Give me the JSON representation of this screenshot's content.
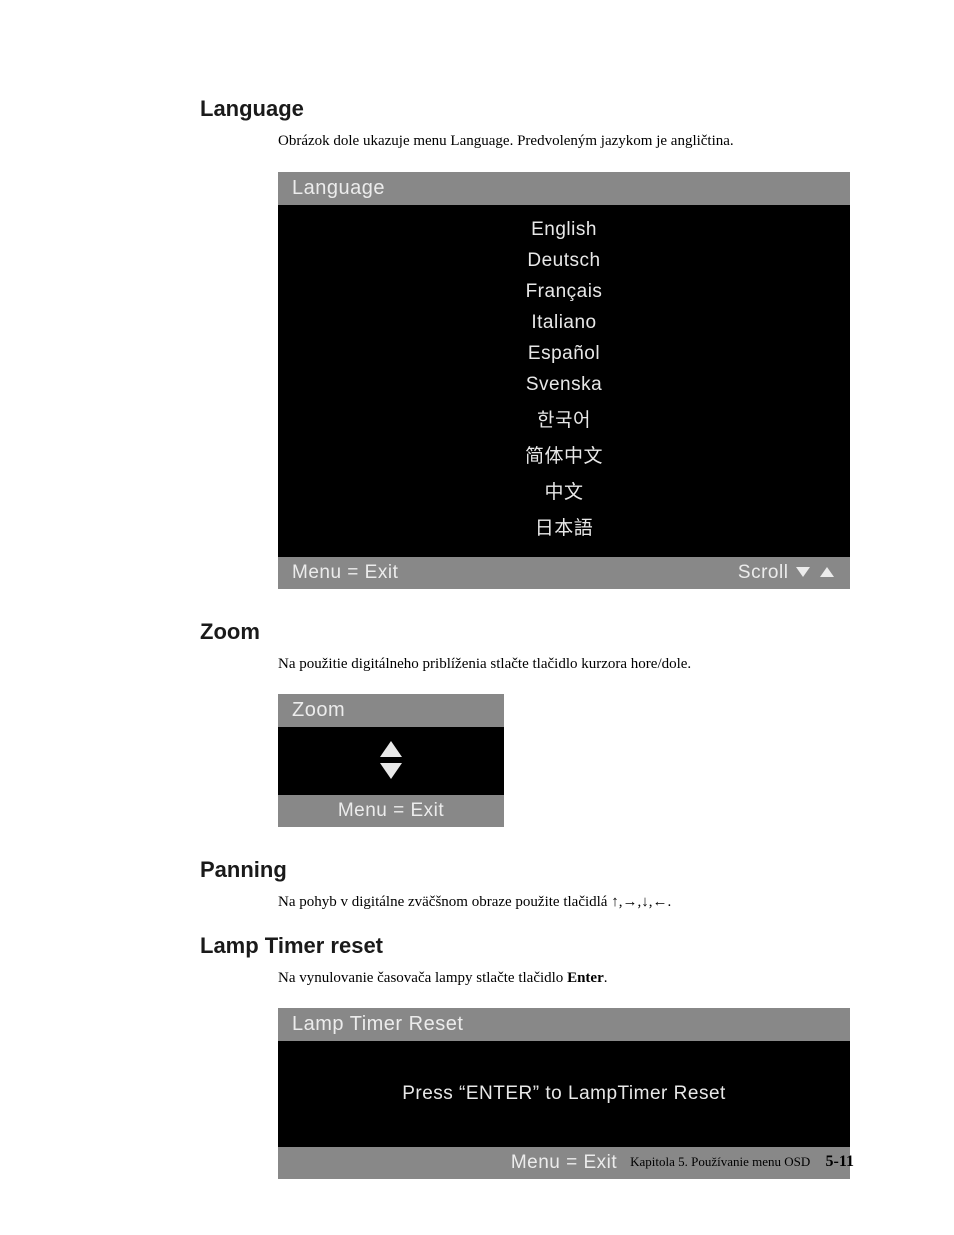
{
  "sections": {
    "language": {
      "heading": "Language",
      "description": "Obrázok dole ukazuje menu Language. Predvoleným jazykom je angličtina.",
      "osd": {
        "title": "Language",
        "items": [
          "English",
          "Deutsch",
          "Français",
          "Italiano",
          "Español",
          "Svenska",
          "한국어",
          "简体中文",
          "中文",
          "日本語"
        ],
        "footer_left": "Menu = Exit",
        "footer_right": "Scroll"
      }
    },
    "zoom": {
      "heading": "Zoom",
      "description": "Na použitie digitálneho priblíženia stlačte tlačidlo kurzora hore/dole.",
      "osd": {
        "title": "Zoom",
        "footer": "Menu = Exit"
      }
    },
    "panning": {
      "heading": "Panning",
      "description": "Na pohyb v digitálne zväčšnom obraze použite tlačidlá ↑,→,↓,←."
    },
    "lamp": {
      "heading": "Lamp Timer reset",
      "description_pre": "Na vynulovanie časovača lampy stlačte tlačidlo ",
      "description_bold": "Enter",
      "description_post": ".",
      "osd": {
        "title": "Lamp Timer Reset",
        "body": "Press “ENTER” to LampTimer Reset",
        "footer": "Menu = Exit"
      }
    }
  },
  "footer": {
    "chapter": "Kapitola 5. Používanie menu OSD",
    "page": "5-11"
  },
  "style": {
    "osd_header_bg": "#888888",
    "osd_body_bg": "#000000",
    "osd_text": "#e8e8e8",
    "page_bg": "#ffffff",
    "heading_font": "Helvetica",
    "body_font": "Times New Roman",
    "heading_size_pt": 16,
    "body_size_pt": 11
  }
}
